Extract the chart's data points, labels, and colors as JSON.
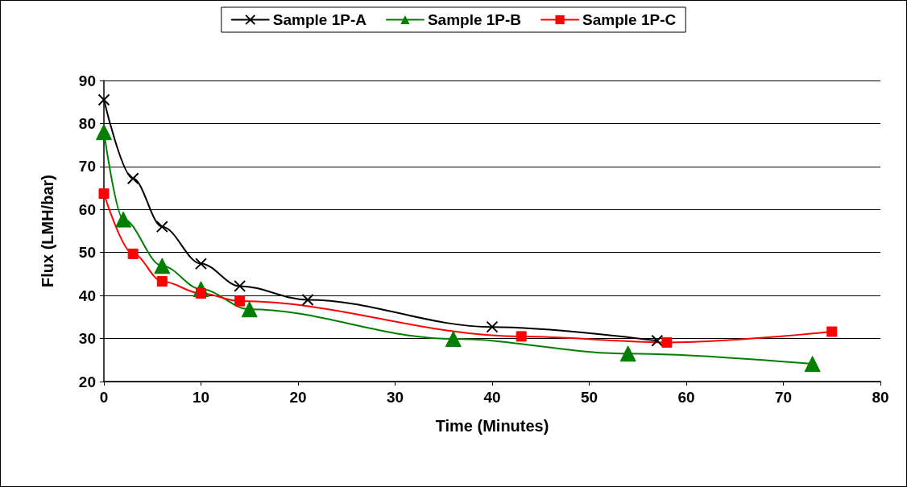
{
  "chart_data": {
    "type": "line",
    "xlabel": "Time (Minutes)",
    "ylabel": "Flux (LMH/bar)",
    "xlim": [
      0,
      80
    ],
    "xticks": [
      0,
      10,
      20,
      30,
      40,
      50,
      60,
      70,
      80
    ],
    "ylim": [
      20,
      90
    ],
    "yticks": [
      20,
      30,
      40,
      50,
      60,
      70,
      80,
      90
    ],
    "grid": "y",
    "legend": "top",
    "line_style": "solid",
    "series": [
      {
        "name": "Sample 1P-A",
        "color": "#000000",
        "marker": "cross",
        "x": [
          0,
          3,
          6,
          10,
          14,
          21,
          40,
          57
        ],
        "values": [
          85.5,
          67.2,
          56,
          47.4,
          42.2,
          39,
          32.7,
          29.5
        ]
      },
      {
        "name": "Sample 1P-B",
        "color": "#008000",
        "marker": "triangle",
        "x": [
          0,
          2,
          6,
          10,
          15,
          36,
          54,
          73
        ],
        "values": [
          78,
          57.7,
          46.9,
          41.5,
          36.8,
          29.9,
          26.5,
          24.1
        ]
      },
      {
        "name": "Sample 1P-C",
        "color": "#ff0000",
        "marker": "square",
        "x": [
          0,
          3,
          6,
          10,
          14,
          43,
          58,
          75
        ],
        "values": [
          63.7,
          49.7,
          43.3,
          40.5,
          38.7,
          30.5,
          29.1,
          31.6
        ]
      }
    ]
  }
}
